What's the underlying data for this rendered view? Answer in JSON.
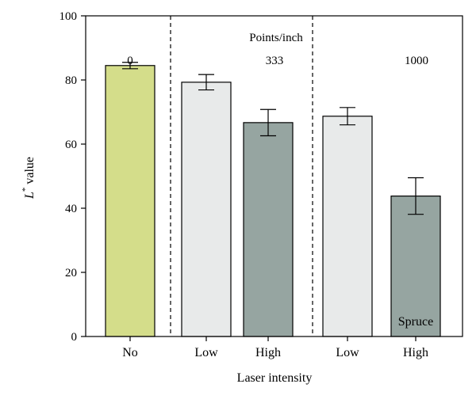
{
  "chart_data": {
    "type": "bar",
    "title": "",
    "xlabel": "Laser intensity",
    "ylabel": "L* value",
    "ylabel_main": "L",
    "ylabel_sup": "*",
    "ylabel_rest": " value",
    "ylim": [
      0,
      100
    ],
    "yticks": [
      0,
      20,
      40,
      60,
      80,
      100
    ],
    "grid": false,
    "legend": "none",
    "annotation": "Points/inch",
    "inside_label": "Spruce",
    "groups": [
      {
        "label": "0",
        "categories": [
          "No"
        ]
      },
      {
        "label": "333",
        "categories": [
          "Low",
          "High"
        ]
      },
      {
        "label": "1000",
        "categories": [
          "Low",
          "High"
        ]
      }
    ],
    "categories": [
      "No",
      "Low",
      "High",
      "Low",
      "High"
    ],
    "values": [
      84.5,
      79.3,
      66.7,
      68.7,
      43.8
    ],
    "errors": [
      1.0,
      2.4,
      4.1,
      2.7,
      5.7
    ],
    "bar_colors": [
      "#d4dd8a",
      "#e8eaea",
      "#96a5a1",
      "#e8eaea",
      "#96a5a1"
    ]
  }
}
